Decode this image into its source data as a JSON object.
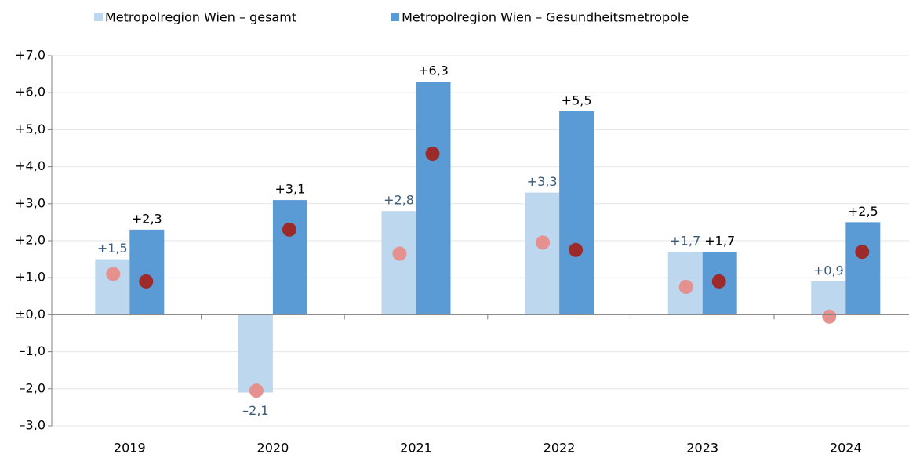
{
  "chart_data": {
    "type": "bar",
    "categories": [
      "2019",
      "2020",
      "2021",
      "2022",
      "2023",
      "2024"
    ],
    "series": [
      {
        "name": "Metropolregion Wien – gesamt",
        "color": "#bdd7ee",
        "label_color": "#3b5b7c",
        "mark": "bar",
        "values": [
          1.5,
          -2.1,
          2.8,
          3.3,
          1.7,
          0.9
        ],
        "value_labels": [
          "+1,5",
          "–2,1",
          "+2,8",
          "+3,3",
          "+1,7",
          "+0,9"
        ]
      },
      {
        "name": "Metropolregion Wien – Gesundheitsmetropole",
        "color": "#5b9bd5",
        "label_color": "#000000",
        "mark": "bar",
        "values": [
          2.3,
          3.1,
          6.3,
          5.5,
          1.7,
          2.5
        ],
        "value_labels": [
          "+2,3",
          "+3,1",
          "+6,3",
          "+5,5",
          "+1,7",
          "+2,5"
        ]
      },
      {
        "color": "#e4918f",
        "mark": "dot",
        "values": [
          1.1,
          -2.05,
          1.65,
          1.95,
          0.75,
          -0.05
        ]
      },
      {
        "color": "#9c2a2a",
        "mark": "dot",
        "values": [
          0.9,
          2.3,
          4.35,
          1.75,
          0.9,
          1.7
        ]
      }
    ],
    "ylim": [
      -3,
      7
    ],
    "yticks": [
      {
        "value": -3,
        "label": "–3,0"
      },
      {
        "value": -2,
        "label": "–2,0"
      },
      {
        "value": -1,
        "label": "–1,0"
      },
      {
        "value": 0,
        "label": "±0,0"
      },
      {
        "value": 1,
        "label": "+1,0"
      },
      {
        "value": 2,
        "label": "+2,0"
      },
      {
        "value": 3,
        "label": "+3,0"
      },
      {
        "value": 4,
        "label": "+4,0"
      },
      {
        "value": 5,
        "label": "+5,0"
      },
      {
        "value": 6,
        "label": "+6,0"
      },
      {
        "value": 7,
        "label": "+7,0"
      }
    ],
    "grid": true,
    "legend": "top"
  }
}
